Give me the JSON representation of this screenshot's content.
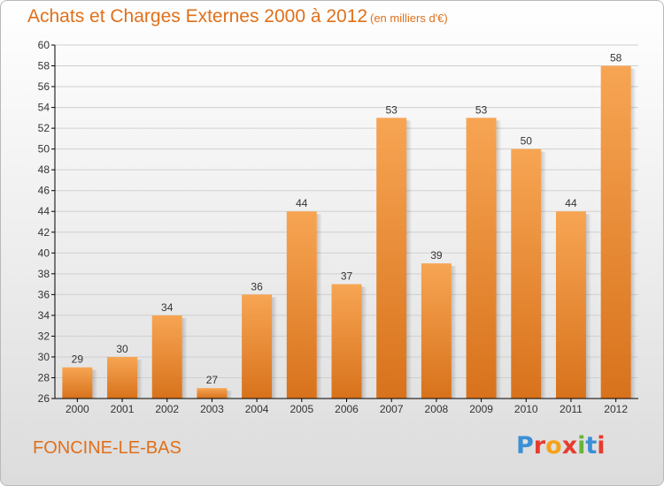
{
  "header": {
    "title": "Achats et Charges Externes 2000 à 2012",
    "unit": "(en milliers d'€)"
  },
  "footer": {
    "commune": "FONCINE-LE-BAS",
    "logo_text": "Proxiti",
    "logo_colors": [
      "#3b8fd6",
      "#e63c2e",
      "#f6a21a",
      "#e63c2e",
      "#6ab33b",
      "#3b8fd6",
      "#e63c2e"
    ]
  },
  "colors": {
    "bar_light": "#f7a553",
    "bar_dark": "#d8721c",
    "grid": "#cfcfcf",
    "axis": "#000000",
    "text": "#333333"
  },
  "chart_data": {
    "type": "bar",
    "title": "Achats et Charges Externes 2000 à 2012",
    "xlabel": "",
    "ylabel": "",
    "categories": [
      "2000",
      "2001",
      "2002",
      "2003",
      "2004",
      "2005",
      "2006",
      "2007",
      "2008",
      "2009",
      "2010",
      "2011",
      "2012"
    ],
    "values": [
      29,
      30,
      34,
      27,
      36,
      44,
      37,
      53,
      39,
      53,
      50,
      44,
      58
    ],
    "ylim": [
      26,
      60
    ],
    "yticks": [
      26,
      28,
      30,
      32,
      34,
      36,
      38,
      40,
      42,
      44,
      46,
      48,
      50,
      52,
      54,
      56,
      58,
      60
    ],
    "grid": true,
    "data_labels": true
  }
}
